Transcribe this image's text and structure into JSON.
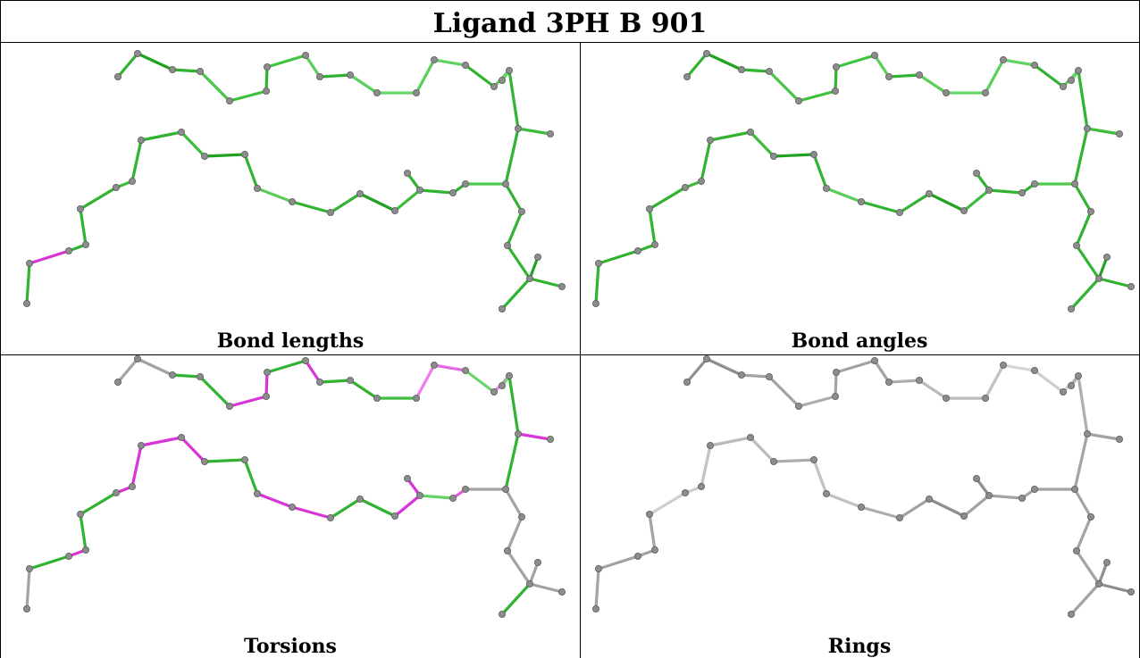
{
  "title": "Ligand 3PH B 901",
  "panels": [
    {
      "caption": "Bond lengths",
      "colors": {
        "0": "#2fae2f",
        "1": "#1f9f1f",
        "2": "#2faf2f",
        "3": "#45c245",
        "4": "#3dbb3d",
        "5": "#2fae2f",
        "6": "#3fbf3f",
        "7": "#55c855",
        "8": "#2fae2f",
        "9": "#58ca58",
        "10": "#66d066",
        "11": "#58c858",
        "12": "#5fcc5f",
        "13": "#2fae2f",
        "14": "#55c855",
        "15": "#62cd62",
        "16": "#2fae2f",
        "17": "#3bb83b",
        "18": "#2fae2f",
        "19": "#4cc44c",
        "20": "#2fae2f",
        "21": "#2fae2f",
        "22": "#2fae2f",
        "23": "#3bb83b",
        "24": "#1f9f1f",
        "25": "#2fae2f",
        "26": "#2fae2f",
        "27": "#58c858",
        "28": "#2fae2f",
        "29": "#1f9f1f",
        "30": "#3bb83b",
        "31": "#2fae2f",
        "32": "#2fae2f",
        "33": "#3bb83b",
        "34": "#2fae2f",
        "35": "#2fae2f",
        "36": "#2fae2f",
        "37": "#d233d2",
        "38": "#2fae2f",
        "39": "#2fae2f",
        "40": "#2fae2f",
        "41": "#2fae2f"
      }
    },
    {
      "caption": "Bond angles",
      "colors": {
        "0": "#2fae2f",
        "1": "#1f9f1f",
        "2": "#2faf2f",
        "3": "#45c245",
        "4": "#3dbb3d",
        "5": "#2fae2f",
        "6": "#3fbf3f",
        "7": "#55c855",
        "8": "#2fae2f",
        "9": "#58ca58",
        "10": "#66d066",
        "11": "#58c858",
        "12": "#5fcc5f",
        "13": "#2fae2f",
        "14": "#55c855",
        "15": "#62cd62",
        "16": "#2fae2f",
        "17": "#3bb83b",
        "18": "#2fae2f",
        "19": "#4cc44c",
        "20": "#2fae2f",
        "21": "#2fae2f",
        "22": "#2fae2f",
        "23": "#3bb83b",
        "24": "#1f9f1f",
        "25": "#2fae2f",
        "26": "#2fae2f",
        "27": "#58c858",
        "28": "#2fae2f",
        "29": "#1f9f1f",
        "30": "#3bb83b",
        "31": "#2fae2f",
        "32": "#2fae2f",
        "33": "#3bb83b",
        "34": "#2fae2f",
        "35": "#2fae2f",
        "36": "#2fae2f",
        "37": "#2fae2f",
        "38": "#2fae2f",
        "39": "#2fae2f",
        "40": "#2fae2f",
        "41": "#2fae2f"
      }
    },
    {
      "caption": "Torsions",
      "colors": {
        "0": "#9e9e9e",
        "1": "#9e9e9e",
        "2": "#2fae2f",
        "3": "#2fae2f",
        "4": "#d233d2",
        "5": "#d233d2",
        "6": "#2fae2f",
        "7": "#d233d2",
        "8": "#2fae2f",
        "9": "#2fae2f",
        "10": "#3bb83b",
        "11": "#ea78ea",
        "12": "#e066e0",
        "13": "#66d066",
        "14": "#ea78ea",
        "15": "#66d066",
        "16": "#2fae2f",
        "17": "#d233d2",
        "18": "#2fae2f",
        "19": "#9e9e9e",
        "20": "#e056e0",
        "21": "#62cd62",
        "22": "#d233d2",
        "23": "#d233d2",
        "24": "#2fae2f",
        "25": "#2fae2f",
        "26": "#d233d2",
        "27": "#d233d2",
        "28": "#2fae2f",
        "29": "#2fae2f",
        "30": "#d233d2",
        "31": "#d233d2",
        "32": "#d233d2",
        "33": "#d233d2",
        "34": "#2fae2f",
        "35": "#2fae2f",
        "36": "#d233d2",
        "37": "#2fae2f",
        "38": "#9e9e9e",
        "39": "#9e9e9e",
        "40": "#9e9e9e",
        "41": "#9e9e9e"
      }
    },
    {
      "caption": "Rings",
      "colors": {
        "0": "#8a8a8a",
        "1": "#8a8a8a",
        "2": "#9e9e9e",
        "3": "#9e9e9e",
        "4": "#a8a8a8",
        "5": "#9e9e9e",
        "6": "#9e9e9e",
        "7": "#9e9e9e",
        "8": "#a8a8a8",
        "9": "#b5b5b5",
        "10": "#b5b5b5",
        "11": "#bcbcbc",
        "12": "#d0d0d0",
        "13": "#c8c8c8",
        "14": "#c8c8c8",
        "15": "#a8a8a8",
        "16": "#a8a8a8",
        "17": "#9e9e9e",
        "18": "#9e9e9e",
        "19": "#9e9e9e",
        "20": "#9e9e9e",
        "21": "#9e9e9e",
        "22": "#8a8a8a",
        "23": "#9e9e9e",
        "24": "#8a8a8a",
        "25": "#9e9e9e",
        "26": "#a8a8a8",
        "27": "#bcbcbc",
        "28": "#bcbcbc",
        "29": "#a8a8a8",
        "30": "#b5b5b5",
        "31": "#b5b5b5",
        "32": "#bcbcbc",
        "33": "#c8c8c8",
        "34": "#c8c8c8",
        "35": "#9e9e9e",
        "36": "#9e9e9e",
        "37": "#9e9e9e",
        "38": "#9e9e9e",
        "39": "#9e9e9e",
        "40": "#9e9e9e",
        "41": "#9e9e9e"
      }
    }
  ],
  "atom_color": "#8c8c8c"
}
